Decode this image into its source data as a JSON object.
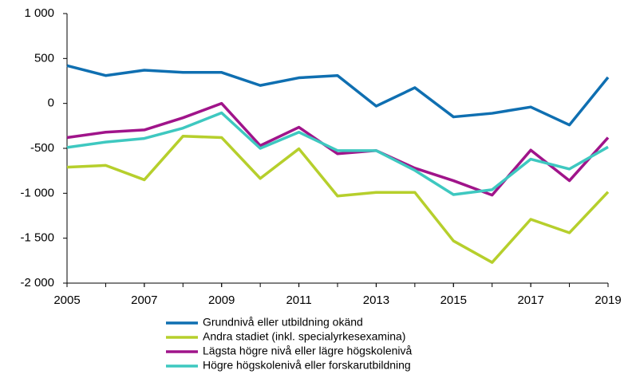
{
  "chart_data": {
    "type": "line",
    "x": [
      2005,
      2006,
      2007,
      2008,
      2009,
      2010,
      2011,
      2012,
      2013,
      2014,
      2015,
      2016,
      2017,
      2018,
      2019
    ],
    "xlim": [
      2005,
      2019
    ],
    "xticks": [
      2005,
      2007,
      2009,
      2011,
      2013,
      2015,
      2017,
      2019
    ],
    "ylim": [
      -2000,
      1000
    ],
    "yticks": [
      {
        "value": -2000,
        "label": "-2 000"
      },
      {
        "value": -1500,
        "label": "-1 500"
      },
      {
        "value": -1000,
        "label": "-1 000"
      },
      -500,
      0,
      500,
      {
        "value": 1000,
        "label": "1 000"
      }
    ],
    "grid": false,
    "legend": "bottom",
    "series": [
      {
        "name": "Grundnivå eller utbildning okänd",
        "color": "#0f6fb1",
        "values": [
          420,
          310,
          370,
          345,
          345,
          200,
          285,
          310,
          -30,
          175,
          -150,
          -110,
          -40,
          -240,
          290
        ]
      },
      {
        "name": "Andra stadiet (inkl. specialyrkesexamina)",
        "color": "#b6cf2c",
        "values": [
          -710,
          -690,
          -850,
          -365,
          -380,
          -835,
          -505,
          -1030,
          -990,
          -990,
          -1530,
          -1770,
          -1290,
          -1440,
          -985
        ]
      },
      {
        "name": "Lägsta högre nivå eller lägre högskolenivå",
        "color": "#a0148a",
        "values": [
          -380,
          -320,
          -295,
          -160,
          0,
          -470,
          -265,
          -560,
          -525,
          -720,
          -860,
          -1020,
          -520,
          -860,
          -380
        ]
      },
      {
        "name": "Högre högskolenivå eller forskarutbildning",
        "color": "#3ec8c0",
        "values": [
          -490,
          -430,
          -390,
          -275,
          -105,
          -500,
          -320,
          -525,
          -525,
          -745,
          -1015,
          -960,
          -620,
          -730,
          -485
        ]
      }
    ]
  }
}
